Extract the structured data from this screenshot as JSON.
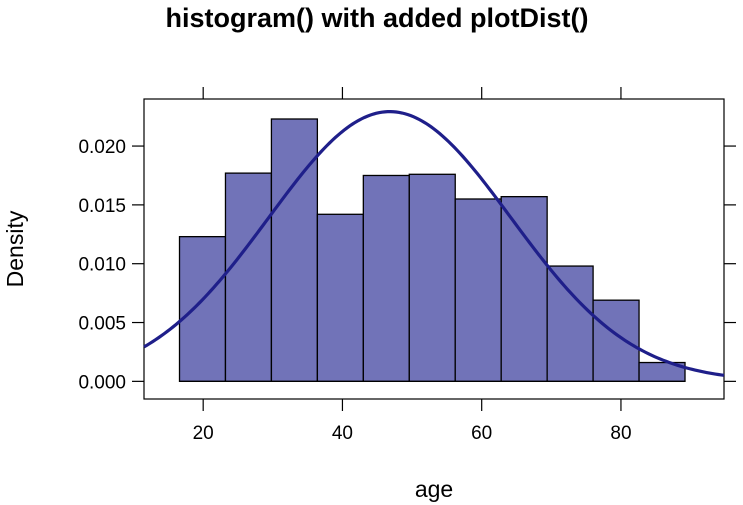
{
  "chart_data": {
    "type": "bar",
    "title": "histogram() with added plotDist()",
    "xlabel": "age",
    "ylabel": "Density",
    "xlim": [
      11.5,
      94.8
    ],
    "ylim": [
      -0.0015,
      0.024
    ],
    "x_ticks": [
      20,
      40,
      60,
      80
    ],
    "x_tick_labels": [
      "20",
      "40",
      "60",
      "80"
    ],
    "y_ticks": [
      0.0,
      0.005,
      0.01,
      0.015,
      0.02
    ],
    "y_tick_labels": [
      "0.000",
      "0.005",
      "0.010",
      "0.015",
      "0.020"
    ],
    "bins": [
      {
        "x0": 16.6,
        "x1": 23.2,
        "density": 0.0123
      },
      {
        "x0": 23.2,
        "x1": 29.8,
        "density": 0.0177
      },
      {
        "x0": 29.8,
        "x1": 36.4,
        "density": 0.0223
      },
      {
        "x0": 36.4,
        "x1": 43.0,
        "density": 0.0142
      },
      {
        "x0": 43.0,
        "x1": 49.6,
        "density": 0.0175
      },
      {
        "x0": 49.6,
        "x1": 56.2,
        "density": 0.0176
      },
      {
        "x0": 56.2,
        "x1": 62.8,
        "density": 0.0155
      },
      {
        "x0": 62.8,
        "x1": 69.4,
        "density": 0.0157
      },
      {
        "x0": 69.4,
        "x1": 76.0,
        "density": 0.0098
      },
      {
        "x0": 76.0,
        "x1": 82.6,
        "density": 0.0069
      },
      {
        "x0": 82.6,
        "x1": 89.2,
        "density": 0.0016
      }
    ],
    "overlay": {
      "type": "normal-density-curve",
      "mean": 46.8,
      "sd": 17.4
    },
    "grid": false,
    "legend": "none",
    "colors": {
      "bar_fill": "#7173b8",
      "bar_stroke": "#000000",
      "curve": "#1f1f8a"
    }
  }
}
